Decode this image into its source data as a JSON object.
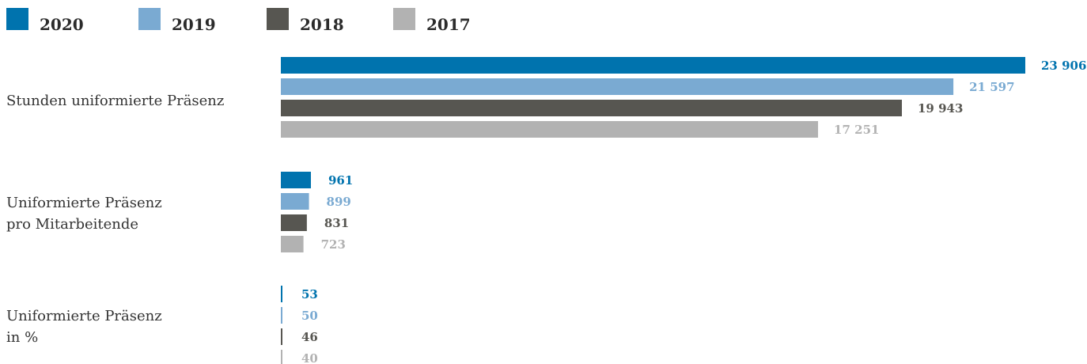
{
  "chart_data": {
    "type": "bar",
    "orientation": "horizontal",
    "legend_position": "top-left",
    "grid": false,
    "series": [
      {
        "name": "2020",
        "color": "#0073ae"
      },
      {
        "name": "2019",
        "color": "#7aaad2"
      },
      {
        "name": "2018",
        "color": "#575651"
      },
      {
        "name": "2017",
        "color": "#b2b2b2"
      }
    ],
    "groups": [
      {
        "label": [
          "Stunden uniformierte Präsenz"
        ],
        "values": [
          23906,
          21597,
          19943,
          17251
        ],
        "display": [
          "23 906",
          "21 597",
          "19 943",
          "17 251"
        ]
      },
      {
        "label": [
          "Uniformierte Präsenz",
          "pro Mitarbeitende"
        ],
        "values": [
          961,
          899,
          831,
          723
        ],
        "display": [
          "961",
          "899",
          "831",
          "723"
        ]
      },
      {
        "label": [
          "Uniformierte Präsenz",
          "in %"
        ],
        "values": [
          53,
          50,
          46,
          40
        ],
        "display": [
          "53",
          "50",
          "46",
          "40"
        ]
      }
    ]
  }
}
